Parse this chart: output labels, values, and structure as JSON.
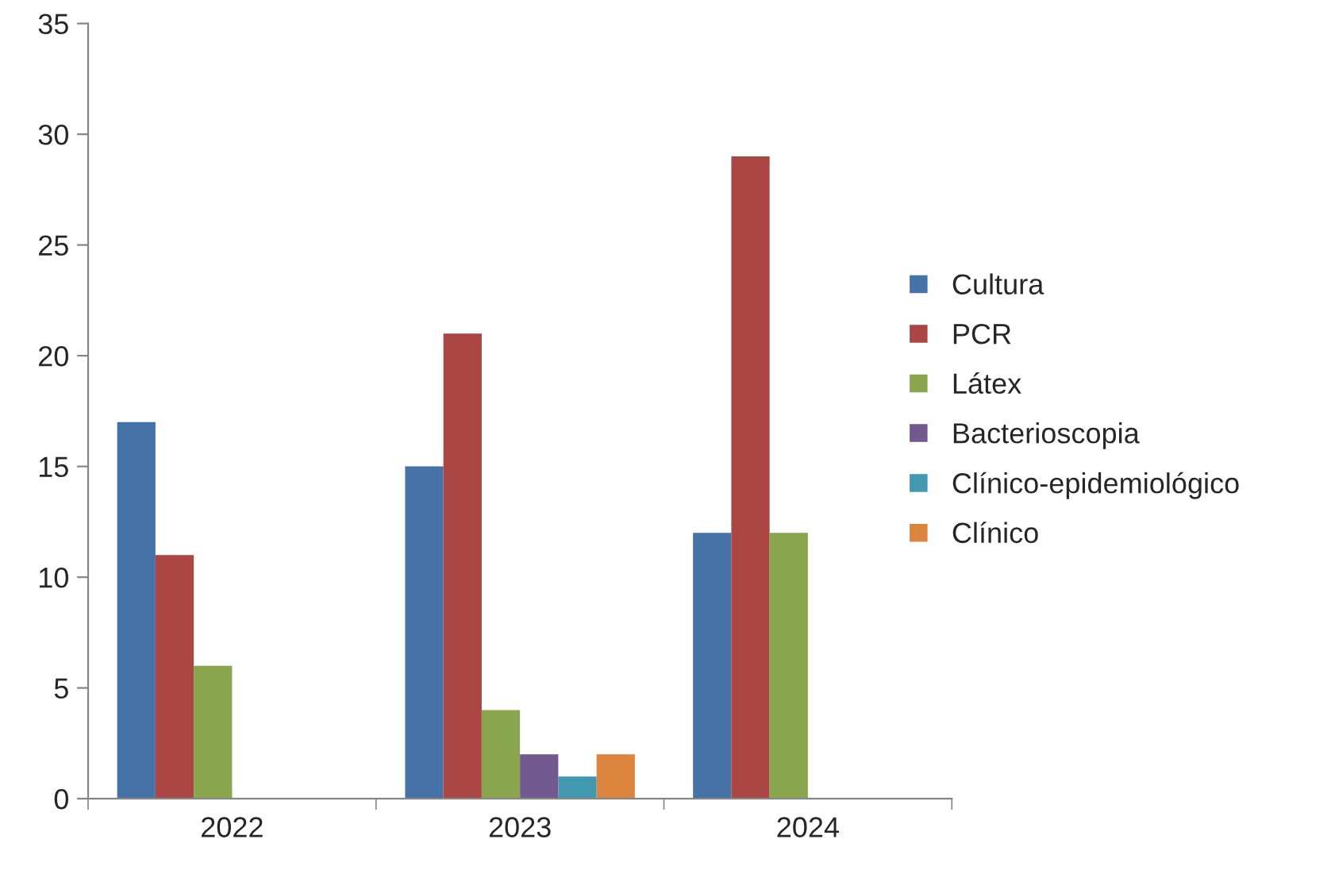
{
  "chart_data": {
    "type": "bar",
    "categories": [
      "2022",
      "2023",
      "2024"
    ],
    "series": [
      {
        "name": "Cultura",
        "color": "#4572a7",
        "values": [
          17,
          15,
          12
        ]
      },
      {
        "name": "PCR",
        "color": "#aa4643",
        "values": [
          11,
          21,
          29
        ]
      },
      {
        "name": "Látex",
        "color": "#89a54e",
        "values": [
          6,
          4,
          12
        ]
      },
      {
        "name": "Bacterioscopia",
        "color": "#71588f",
        "values": [
          null,
          2,
          null
        ]
      },
      {
        "name": "Clínico-epidemiológico",
        "color": "#4198af",
        "values": [
          null,
          1,
          null
        ]
      },
      {
        "name": "Clínico",
        "color": "#db843d",
        "values": [
          null,
          2,
          null
        ]
      }
    ],
    "ylim": [
      0,
      35
    ],
    "yticks": [
      0,
      5,
      10,
      15,
      20,
      25,
      30,
      35
    ],
    "grid": false,
    "legend": "right"
  }
}
